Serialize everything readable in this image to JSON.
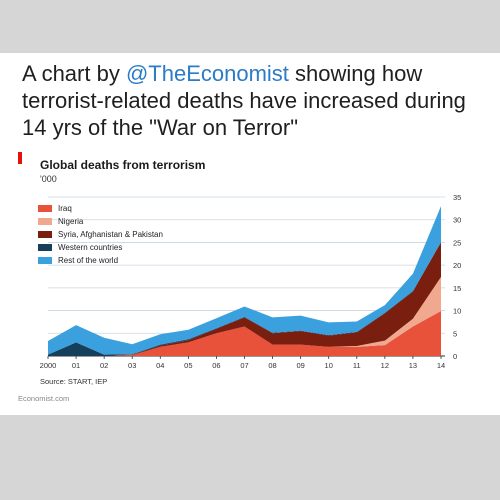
{
  "tweet": {
    "prefix": "A chart by ",
    "handle": "@TheEconomist",
    "rest": " showing how terrorist-related deaths have increased during 14 yrs of the \"War on Terror\""
  },
  "chart_data": {
    "type": "area",
    "title": "Global deaths from terrorism",
    "unit": "'000",
    "source": "Source: START, IEP",
    "brand": "Economist.com",
    "x": [
      2000,
      2001,
      2002,
      2003,
      2004,
      2005,
      2006,
      2007,
      2008,
      2009,
      2010,
      2011,
      2012,
      2013,
      2014
    ],
    "xticklabels": [
      "2000",
      "01",
      "02",
      "03",
      "04",
      "05",
      "06",
      "07",
      "08",
      "09",
      "10",
      "11",
      "12",
      "13",
      "14"
    ],
    "ylim": [
      0,
      35
    ],
    "yticks": [
      0,
      5,
      10,
      15,
      20,
      25,
      30,
      35
    ],
    "stacked": true,
    "grid": true,
    "legend_position": "top-left",
    "series": [
      {
        "name": "Iraq",
        "color": "#e8513a",
        "values": [
          0,
          0,
          0,
          0.2,
          2.0,
          3.0,
          5.0,
          6.5,
          2.5,
          2.5,
          2.0,
          2.0,
          2.4,
          6.5,
          9.9
        ]
      },
      {
        "name": "Nigeria",
        "color": "#f0a98e",
        "values": [
          0,
          0,
          0,
          0,
          0,
          0,
          0,
          0,
          0,
          0,
          0,
          0.2,
          1.0,
          1.7,
          7.5
        ]
      },
      {
        "name": "Syria, Afghanistan & Pakistan",
        "color": "#7a1e10",
        "values": [
          0,
          0,
          0,
          0.1,
          0.3,
          0.5,
          1.0,
          2.0,
          2.5,
          3.0,
          2.5,
          3.0,
          6.0,
          6.0,
          7.6
        ]
      },
      {
        "name": "Western countries",
        "color": "#163f5c",
        "values": [
          0.3,
          3.0,
          0.3,
          0.1,
          0.2,
          0.2,
          0.1,
          0.1,
          0.1,
          0.1,
          0.1,
          0.1,
          0.1,
          0.1,
          0.1
        ]
      },
      {
        "name": "Rest of the world",
        "color": "#3aa0de",
        "values": [
          3.0,
          3.8,
          3.7,
          2.2,
          2.3,
          2.1,
          2.2,
          2.3,
          3.4,
          3.3,
          2.8,
          2.3,
          1.7,
          3.8,
          7.9
        ]
      }
    ]
  }
}
